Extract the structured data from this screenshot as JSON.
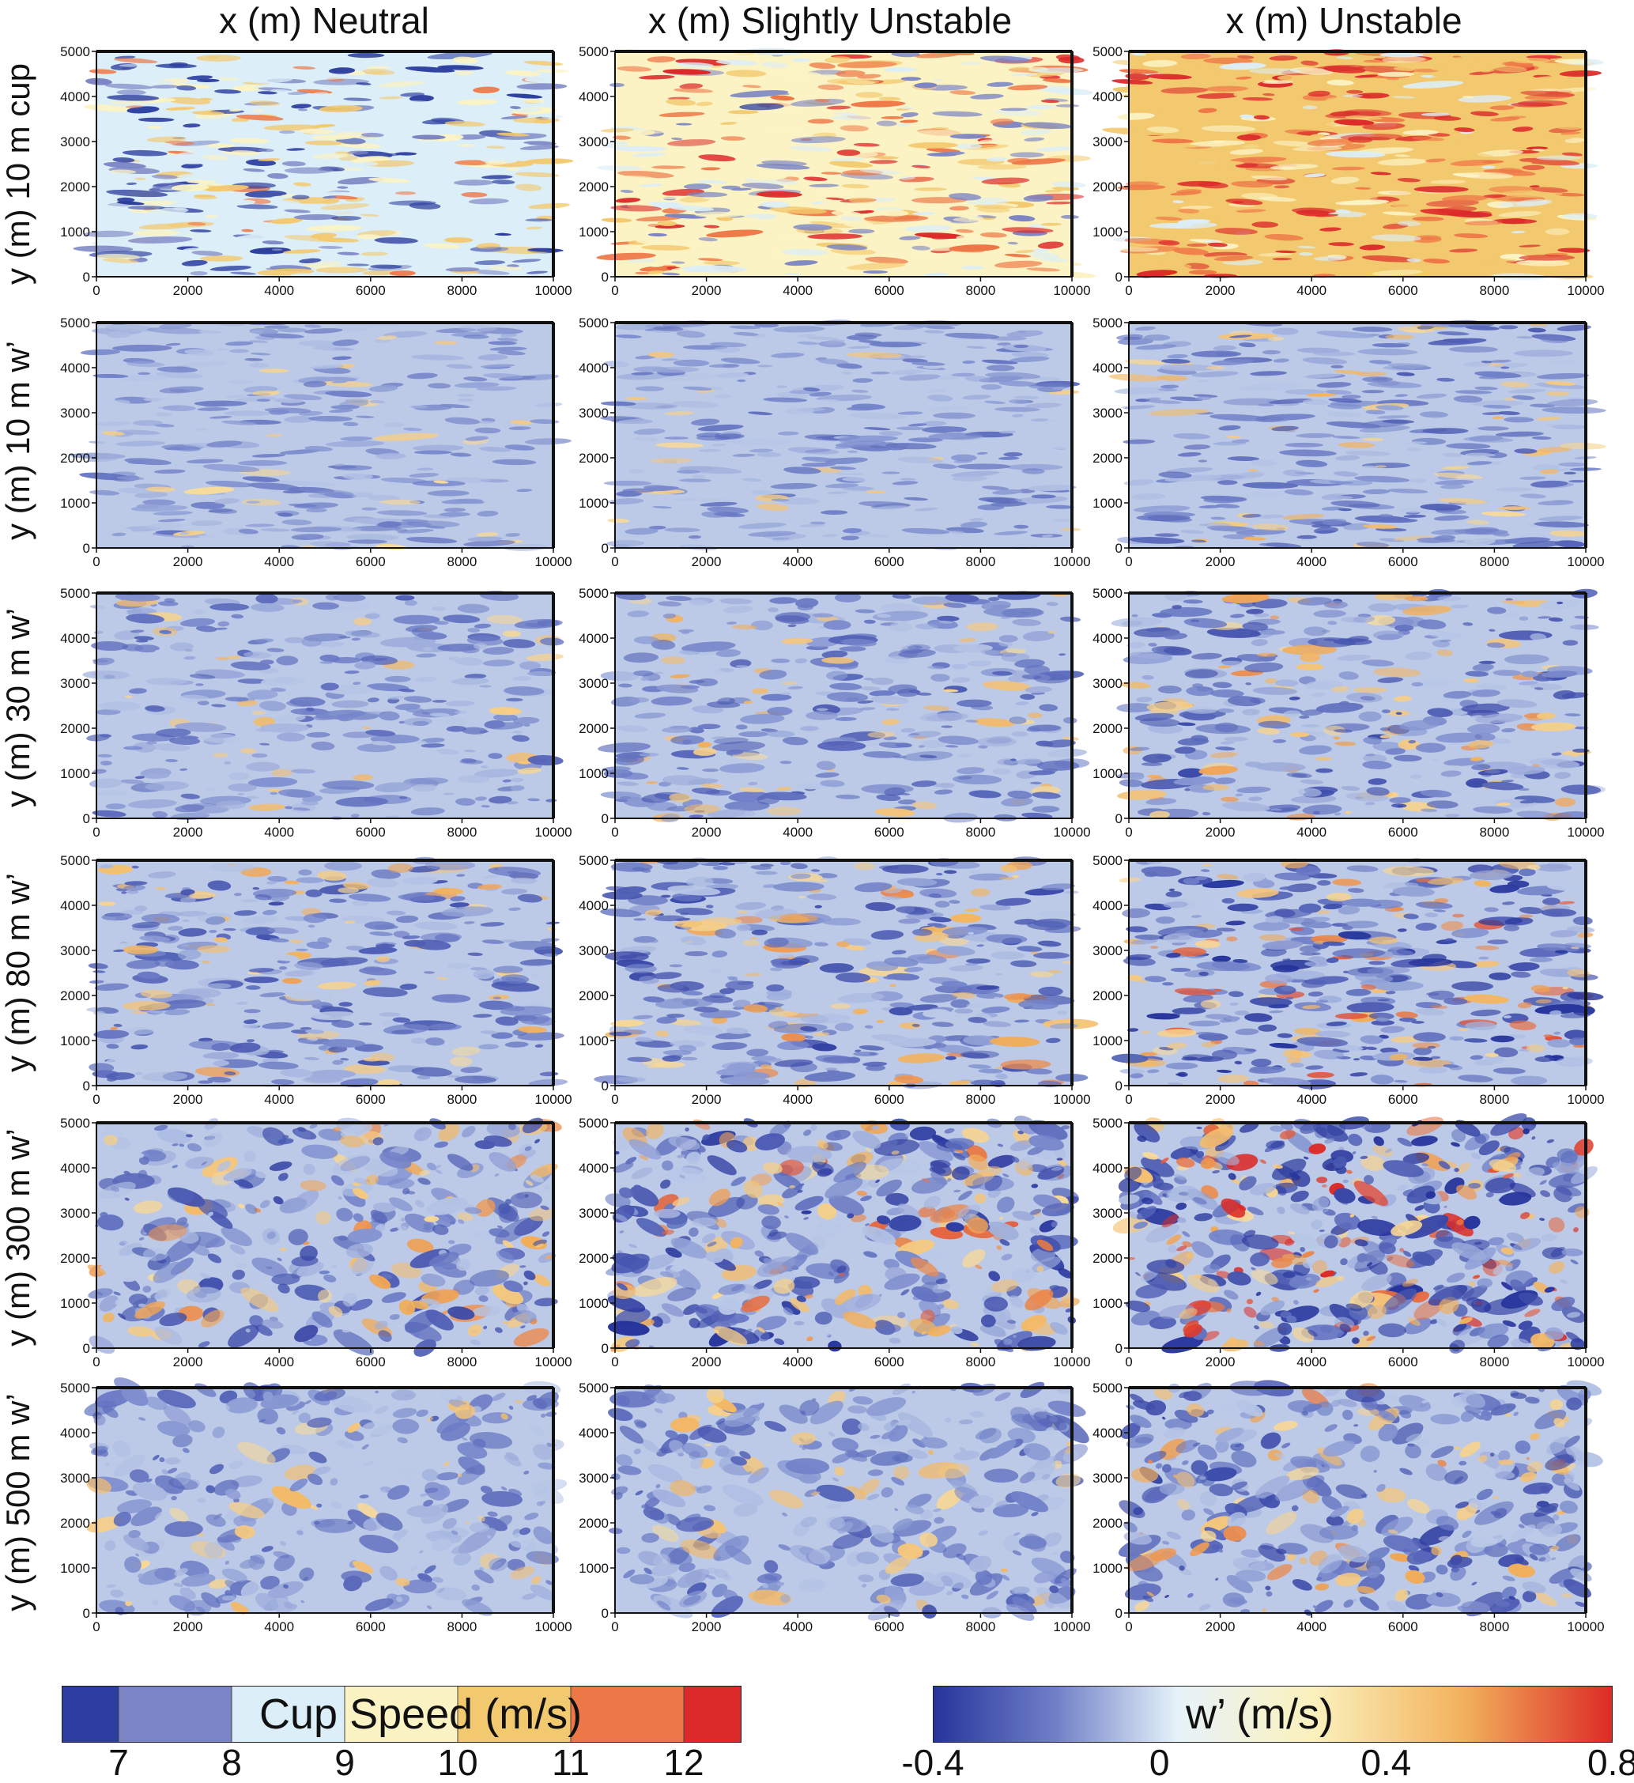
{
  "column_headers": [
    "x (m) Neutral",
    "x (m) Slightly Unstable",
    "x (m) Unstable"
  ],
  "row_labels": [
    "y (m) 10 m cup",
    "y (m) 10 m w’",
    "y (m) 30 m w’",
    "y (m) 80 m w’",
    "y (m) 300 m w’",
    "y (m) 500 m w’"
  ],
  "axes": {
    "x_ticks": [
      "0",
      "2000",
      "4000",
      "6000",
      "8000",
      "10000"
    ],
    "y_ticks": [
      "0",
      "1000",
      "2000",
      "3000",
      "4000",
      "5000"
    ],
    "x_range": [
      0,
      10000
    ],
    "y_range": [
      0,
      5000
    ]
  },
  "colorbars": {
    "cup": {
      "title": "Cup Speed (m/s)",
      "ticks": [
        "7",
        "8",
        "9",
        "10",
        "11",
        "12"
      ],
      "bins": [
        {
          "color": "#2b3d9e"
        },
        {
          "color": "#7b84c4"
        },
        {
          "color": "#dceef7"
        },
        {
          "color": "#fbf3c4"
        },
        {
          "color": "#f3c96f"
        },
        {
          "color": "#ee7747"
        },
        {
          "color": "#dc2a2a"
        }
      ]
    },
    "w": {
      "title": "w’ (m/s)",
      "ticks": [
        "-0.4",
        "0",
        "0.4",
        "0.8"
      ],
      "gradient": [
        "#26349c",
        "#6f7fc7",
        "#e6f3fa",
        "#fbf1bd",
        "#f2b25c",
        "#dc2a26"
      ]
    }
  },
  "panel_styles": [
    {
      "palette": "cup",
      "shift": 0.0,
      "intensity": 0.45
    },
    {
      "palette": "cup",
      "shift": 0.18,
      "intensity": 0.45
    },
    {
      "palette": "cup",
      "shift": 0.35,
      "intensity": 0.4
    },
    {
      "palette": "w",
      "shift": -0.05,
      "intensity": 0.18
    },
    {
      "palette": "w",
      "shift": -0.05,
      "intensity": 0.22
    },
    {
      "palette": "w",
      "shift": -0.1,
      "intensity": 0.35
    },
    {
      "palette": "w",
      "shift": -0.05,
      "intensity": 0.3
    },
    {
      "palette": "w",
      "shift": -0.08,
      "intensity": 0.38
    },
    {
      "palette": "w",
      "shift": -0.12,
      "intensity": 0.5
    },
    {
      "palette": "w",
      "shift": -0.1,
      "intensity": 0.45
    },
    {
      "palette": "w",
      "shift": -0.1,
      "intensity": 0.55
    },
    {
      "palette": "w",
      "shift": -0.12,
      "intensity": 0.75
    },
    {
      "palette": "w",
      "shift": -0.08,
      "intensity": 0.5
    },
    {
      "palette": "w",
      "shift": -0.1,
      "intensity": 0.7
    },
    {
      "palette": "w",
      "shift": -0.15,
      "intensity": 0.95
    },
    {
      "palette": "w",
      "shift": 0.0,
      "intensity": 0.3
    },
    {
      "palette": "w",
      "shift": 0.0,
      "intensity": 0.35
    },
    {
      "palette": "w",
      "shift": -0.05,
      "intensity": 0.55
    }
  ]
}
